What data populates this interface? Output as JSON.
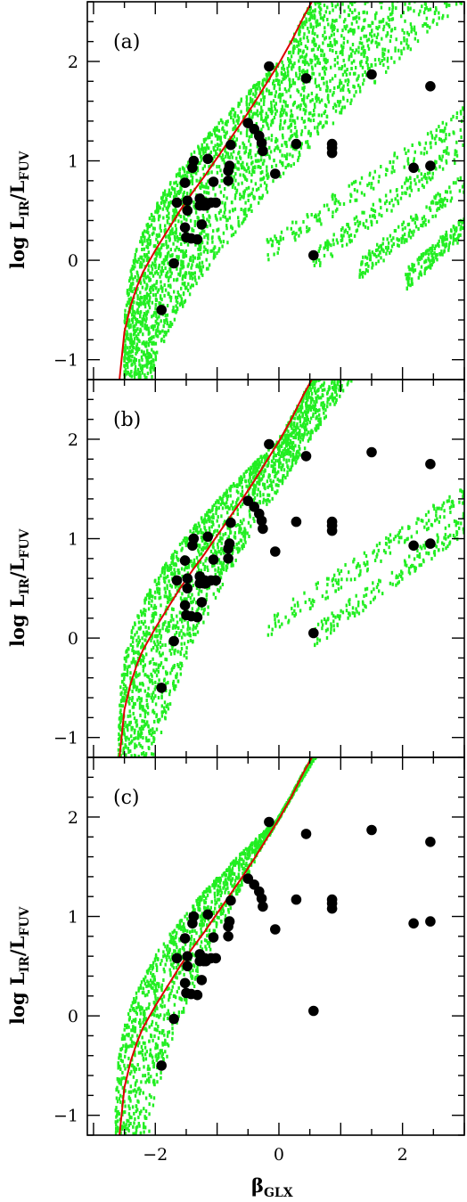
{
  "chart_data": {
    "type": "scatter",
    "xlabel": "βGLX",
    "xlabel_main": "β",
    "xlabel_sub": "GLX",
    "ylabel_main": "log  L",
    "ylabel_sub1": "IR",
    "ylabel_mid": "/L",
    "ylabel_sub2": "FUV",
    "xlim": [
      -3.1,
      3.0
    ],
    "ylim": [
      -1.2,
      2.6
    ],
    "x_ticks": [
      -2,
      0,
      2
    ],
    "x_tick_labels": [
      "−2",
      "0",
      "2"
    ],
    "y_ticks": [
      -1,
      0,
      1,
      2
    ],
    "y_tick_labels": [
      "−1",
      "0",
      "1",
      "2"
    ],
    "colors": {
      "model_cloud": "#22ee22",
      "relation_line": "#dd0000",
      "observed_points": "#000000"
    },
    "relation_curve": {
      "name": "",
      "x": [
        -2.58,
        -2.5,
        -2.4,
        -2.3,
        -2.2,
        -2.0,
        -1.8,
        -1.6,
        -1.4,
        -1.2,
        -1.0,
        -0.8,
        -0.6,
        -0.4,
        -0.2,
        0.0,
        0.2,
        0.4,
        0.55
      ],
      "y": [
        -1.2,
        -0.72,
        -0.46,
        -0.27,
        -0.12,
        0.1,
        0.3,
        0.5,
        0.68,
        0.85,
        1.03,
        1.21,
        1.39,
        1.58,
        1.78,
        1.98,
        2.2,
        2.45,
        2.62
      ]
    },
    "observed": {
      "x": [
        -1.9,
        -1.7,
        -1.65,
        -1.52,
        -1.52,
        -1.5,
        -1.48,
        -1.48,
        -1.42,
        -1.4,
        -1.38,
        -1.32,
        -1.28,
        -1.28,
        -1.25,
        -1.22,
        -1.2,
        -1.18,
        -1.15,
        -1.1,
        -1.06,
        -1.02,
        -0.82,
        -0.82,
        -0.8,
        -0.78,
        -0.5,
        -0.4,
        -0.32,
        -0.28,
        -0.26,
        -0.16,
        -0.06,
        0.28,
        0.44,
        0.56,
        0.86,
        0.86,
        0.86,
        1.5,
        2.18,
        2.45,
        2.45
      ],
      "y": [
        -0.5,
        -0.03,
        0.58,
        0.78,
        0.33,
        0.23,
        0.6,
        0.5,
        0.22,
        0.93,
        1.0,
        0.21,
        0.62,
        0.55,
        0.36,
        0.55,
        0.58,
        0.55,
        1.02,
        0.58,
        0.79,
        0.58,
        0.8,
        0.9,
        0.95,
        1.16,
        1.38,
        1.32,
        1.25,
        1.18,
        1.1,
        1.95,
        0.87,
        1.17,
        1.83,
        0.05,
        1.13,
        1.08,
        1.17,
        1.87,
        0.93,
        1.75,
        0.95
      ]
    },
    "panels": [
      {
        "label": "(a)",
        "model_grid": {
          "x_min_at_bottom": -2.35,
          "x_max_at_bottom": -2.05,
          "x_max_at_top": 3.0,
          "lower_branches": 4,
          "spread": "wide"
        }
      },
      {
        "label": "(b)",
        "model_grid": {
          "x_min_at_bottom": -2.45,
          "x_max_at_bottom": -1.95,
          "x_max_at_top": 1.2,
          "lower_branches": 2,
          "spread": "medium"
        }
      },
      {
        "label": "(c)",
        "model_grid": {
          "x_min_at_bottom": -2.5,
          "x_max_at_bottom": -2.1,
          "x_max_at_top": 0.6,
          "lower_branches": 0,
          "spread": "narrow"
        }
      }
    ]
  }
}
